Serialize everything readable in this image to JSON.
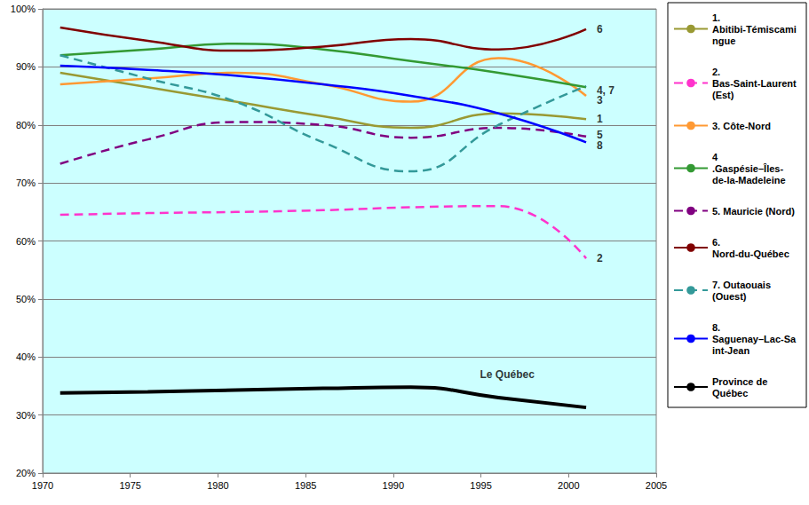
{
  "chart_data": {
    "type": "line",
    "x": [
      1971,
      1976,
      1981,
      1986,
      1991,
      1996,
      2001
    ],
    "xlim": [
      1970,
      2005
    ],
    "xticks": [
      1970,
      1975,
      1980,
      1985,
      1990,
      1995,
      2000,
      2005
    ],
    "ylim": [
      20,
      100
    ],
    "yticks": [
      {
        "value": 20,
        "label": "20%"
      },
      {
        "value": 30,
        "label": "30%"
      },
      {
        "value": 40,
        "label": "40%"
      },
      {
        "value": 50,
        "label": "50%"
      },
      {
        "value": 60,
        "label": "60%"
      },
      {
        "value": 70,
        "label": "70%"
      },
      {
        "value": 80,
        "label": "80%"
      },
      {
        "value": 90,
        "label": "90%"
      },
      {
        "value": 100,
        "label": "100%"
      }
    ],
    "grid": true,
    "legend": "right",
    "series": [
      {
        "name": "1. Abitibi-Témiscamingue",
        "color": "#999933",
        "line_style": "solid",
        "values": [
          89,
          86.5,
          84,
          81.5,
          79.5,
          82,
          81
        ]
      },
      {
        "name": "2. Bas-Saint-Laurent (Est)",
        "color": "#ff33cc",
        "line_style": "dashed",
        "values": [
          64.5,
          64.8,
          65,
          65.3,
          65.8,
          66,
          57
        ]
      },
      {
        "name": "3. Côte-Nord",
        "color": "#ff9933",
        "line_style": "solid",
        "values": [
          87,
          88,
          89,
          87,
          84,
          91.5,
          85
        ]
      },
      {
        "name": "4 .Gaspésie–Îles-de-la-Madeleine",
        "color": "#339933",
        "line_style": "solid",
        "values": [
          92,
          93,
          94,
          93,
          91,
          89,
          86.5
        ]
      },
      {
        "name": "5. Mauricie (Nord)",
        "color": "#800080",
        "line_style": "dashed",
        "values": [
          73.3,
          77.5,
          80.5,
          80,
          77.8,
          79.5,
          78
        ]
      },
      {
        "name": "6. Nord-du-Québec",
        "color": "#800000",
        "line_style": "solid",
        "values": [
          96.8,
          94.5,
          92.8,
          93.5,
          94.8,
          93,
          96.5
        ]
      },
      {
        "name": "7. Outaouais (Ouest)",
        "color": "#339999",
        "line_style": "dashed",
        "values": [
          92,
          88,
          84,
          77,
          72,
          80,
          86.7
        ]
      },
      {
        "name": "8. Saguenay–Lac-Saint-Jean",
        "color": "#0000ff",
        "line_style": "solid",
        "values": [
          90.2,
          89.5,
          88.5,
          87,
          85,
          82,
          77
        ]
      },
      {
        "name": "Province de Québec",
        "color": "#000000",
        "line_style": "solid",
        "values": [
          33.8,
          34,
          34.3,
          34.6,
          34.8,
          33,
          31.3
        ]
      }
    ],
    "annotations": [
      {
        "text": "6",
        "x": 2001.5,
        "y": 96.5
      },
      {
        "text": "4, 7",
        "x": 2001.5,
        "y": 86
      },
      {
        "text": "3",
        "x": 2001.5,
        "y": 84.3
      },
      {
        "text": "1",
        "x": 2001.5,
        "y": 81
      },
      {
        "text": "5",
        "x": 2001.5,
        "y": 78.3
      },
      {
        "text": "8",
        "x": 2001.5,
        "y": 76.5
      },
      {
        "text": "2",
        "x": 2001.5,
        "y": 57
      },
      {
        "text": "Le Québec",
        "x": 1996.5,
        "y": 37
      }
    ]
  }
}
